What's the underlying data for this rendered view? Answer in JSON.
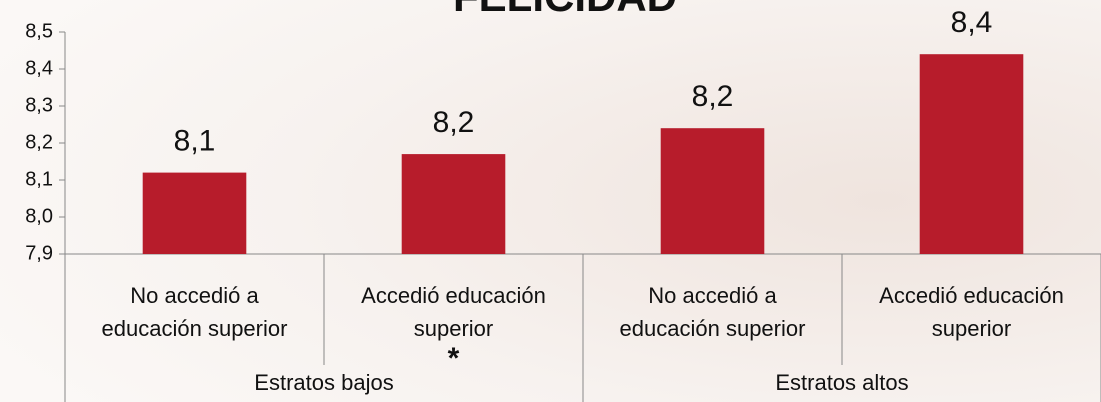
{
  "chart_data": {
    "type": "bar",
    "title": "FELICIDAD",
    "categories": [
      [
        "No accedió a",
        "educación superior"
      ],
      [
        "Accedió educación",
        "superior"
      ],
      [
        "No accedió a",
        "educación superior"
      ],
      [
        "Accedió educación",
        "superior"
      ]
    ],
    "groups": [
      "Estratos bajos",
      "Estratos altos"
    ],
    "annotation": "*",
    "values": [
      8.12,
      8.17,
      8.24,
      8.44
    ],
    "value_labels": [
      "8,1",
      "8,2",
      "8,2",
      "8,4"
    ],
    "color": "#b71c2b",
    "ylim": [
      7.9,
      8.5
    ],
    "yticks": [
      {
        "value": 7.9,
        "label": "7,9"
      },
      {
        "value": 8.0,
        "label": "8,0"
      },
      {
        "value": 8.1,
        "label": "8,1"
      },
      {
        "value": 8.2,
        "label": "8,2"
      },
      {
        "value": 8.3,
        "label": "8,3"
      },
      {
        "value": 8.4,
        "label": "8,4"
      },
      {
        "value": 8.5,
        "label": "8,5"
      }
    ]
  }
}
